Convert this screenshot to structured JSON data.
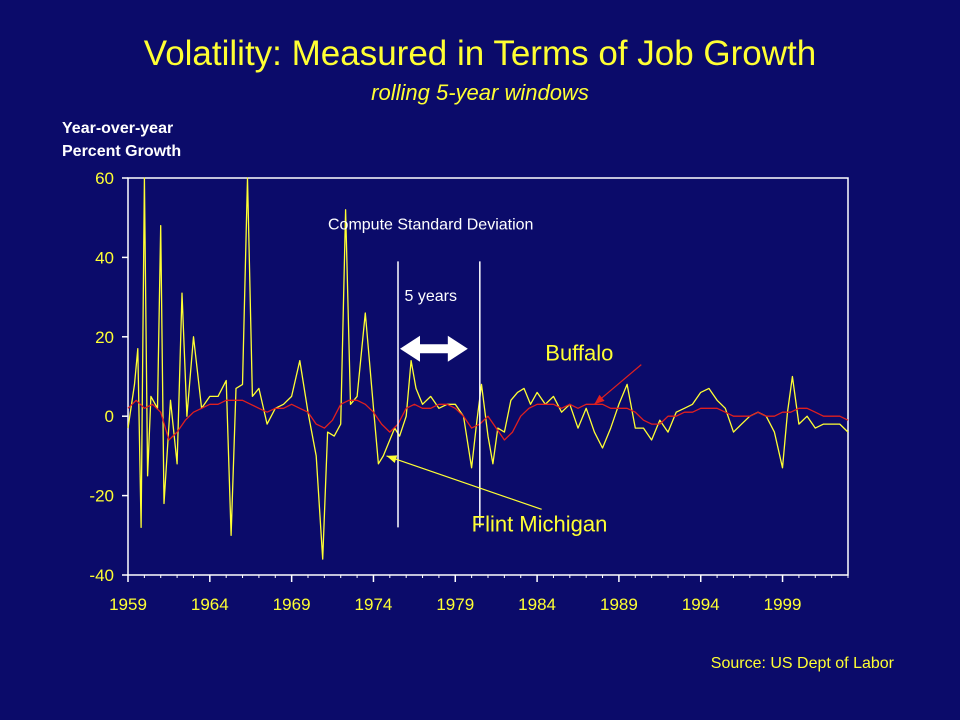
{
  "slide": {
    "title": "Volatility:  Measured in Terms of Job Growth",
    "subtitle": "rolling 5-year windows",
    "ylabel_line1": "Year-over-year",
    "ylabel_line2": "Percent Growth",
    "source": "Source:  US Dept of Labor"
  },
  "colors": {
    "background": "#0b0b6a",
    "flint_series": "#ffff33",
    "buffalo_series": "#e0201f",
    "axis": "#ffffff",
    "text_yellow": "#ffff33",
    "text_white": "#ffffff"
  },
  "chart_data": {
    "type": "line",
    "title": "Volatility:  Measured in Terms of Job Growth",
    "subtitle": "rolling 5-year windows",
    "ylabel": "Year-over-year Percent Growth",
    "xlabel": "",
    "xlim": [
      1959,
      2003
    ],
    "ylim": [
      -40,
      60
    ],
    "x_ticks": [
      "1959",
      "1964",
      "1969",
      "1974",
      "1979",
      "1984",
      "1989",
      "1994",
      "1999"
    ],
    "y_ticks": [
      "60",
      "40",
      "20",
      "0",
      "-20",
      "-40"
    ],
    "grid": false,
    "legend": "none (series labeled by annotations)",
    "series": [
      {
        "name": "Flint Michigan",
        "x": [
          1959.0,
          1959.4,
          1959.6,
          1959.8,
          1960.0,
          1960.2,
          1960.4,
          1960.8,
          1961.0,
          1961.2,
          1961.6,
          1962.0,
          1962.3,
          1962.6,
          1963.0,
          1963.5,
          1964.0,
          1964.5,
          1965.0,
          1965.3,
          1965.6,
          1966.0,
          1966.3,
          1966.6,
          1967.0,
          1967.5,
          1968.0,
          1968.5,
          1969.0,
          1969.5,
          1970.0,
          1970.5,
          1970.9,
          1971.2,
          1971.6,
          1972.0,
          1972.3,
          1972.6,
          1973.0,
          1973.5,
          1974.0,
          1974.3,
          1974.6,
          1975.0,
          1975.3,
          1975.6,
          1976.0,
          1976.3,
          1976.6,
          1977.0,
          1977.5,
          1978.0,
          1978.5,
          1979.0,
          1979.5,
          1980.0,
          1980.3,
          1980.6,
          1981.0,
          1981.3,
          1981.6,
          1982.0,
          1982.4,
          1982.8,
          1983.2,
          1983.6,
          1984.0,
          1984.5,
          1985.0,
          1985.5,
          1986.0,
          1986.5,
          1987.0,
          1987.5,
          1988.0,
          1988.5,
          1989.0,
          1989.5,
          1990.0,
          1990.5,
          1991.0,
          1991.5,
          1992.0,
          1992.5,
          1993.0,
          1993.5,
          1994.0,
          1994.5,
          1995.0,
          1995.5,
          1996.0,
          1996.5,
          1997.0,
          1997.5,
          1998.0,
          1998.5,
          1999.0,
          1999.3,
          1999.6,
          2000.0,
          2000.5,
          2001.0,
          2001.5,
          2002.0,
          2002.5,
          2003.0
        ],
        "y": [
          -3,
          8,
          17,
          -28,
          60,
          -15,
          5,
          2,
          48,
          -22,
          4,
          -12,
          31,
          0,
          20,
          2,
          5,
          5,
          9,
          -30,
          7,
          8,
          60,
          5,
          7,
          -2,
          2,
          3,
          5,
          14,
          1,
          -10,
          -36,
          -4,
          -5,
          -2,
          52,
          3,
          5,
          26,
          2,
          -12,
          -10,
          -6,
          -3,
          -5,
          0,
          14,
          7,
          3,
          5,
          2,
          3,
          3,
          0,
          -13,
          -2,
          8,
          -5,
          -12,
          -3,
          -4,
          4,
          6,
          7,
          3,
          6,
          3,
          5,
          1,
          3,
          -3,
          2,
          -4,
          -8,
          -3,
          3,
          8,
          -3,
          -3,
          -6,
          -1,
          -4,
          1,
          2,
          3,
          6,
          7,
          4,
          2,
          -4,
          -2,
          0,
          1,
          0,
          -4,
          -13,
          1,
          10,
          -2,
          0,
          -3,
          -2,
          -2,
          -2,
          -4
        ]
      },
      {
        "name": "Buffalo",
        "x": [
          1959.0,
          1959.5,
          1960.0,
          1960.5,
          1961.0,
          1961.5,
          1962.0,
          1962.5,
          1963.0,
          1963.5,
          1964.0,
          1964.5,
          1965.0,
          1965.5,
          1966.0,
          1966.5,
          1967.0,
          1967.5,
          1968.0,
          1968.5,
          1969.0,
          1969.5,
          1970.0,
          1970.5,
          1971.0,
          1971.5,
          1972.0,
          1972.5,
          1973.0,
          1973.5,
          1974.0,
          1974.5,
          1975.0,
          1975.5,
          1976.0,
          1976.5,
          1977.0,
          1977.5,
          1978.0,
          1978.5,
          1979.0,
          1979.5,
          1980.0,
          1980.5,
          1981.0,
          1981.5,
          1982.0,
          1982.5,
          1983.0,
          1983.5,
          1984.0,
          1984.5,
          1985.0,
          1985.5,
          1986.0,
          1986.5,
          1987.0,
          1987.5,
          1988.0,
          1988.5,
          1989.0,
          1989.5,
          1990.0,
          1990.5,
          1991.0,
          1991.5,
          1992.0,
          1992.5,
          1993.0,
          1993.5,
          1994.0,
          1994.5,
          1995.0,
          1995.5,
          1996.0,
          1996.5,
          1997.0,
          1997.5,
          1998.0,
          1998.5,
          1999.0,
          1999.5,
          2000.0,
          2000.5,
          2001.0,
          2001.5,
          2002.0,
          2002.5,
          2003.0
        ],
        "y": [
          2,
          4,
          2,
          3,
          1,
          -6,
          -4,
          -1,
          1,
          2,
          3,
          3,
          4,
          4,
          4,
          3,
          2,
          1,
          2,
          2,
          3,
          2,
          1,
          -2,
          -3,
          -1,
          3,
          4,
          4,
          3,
          1,
          -2,
          -4,
          -2,
          2,
          3,
          2,
          2,
          3,
          3,
          2,
          0,
          -3,
          -2,
          0,
          -3,
          -6,
          -4,
          0,
          2,
          3,
          3,
          3,
          2,
          3,
          2,
          3,
          3,
          3,
          2,
          2,
          2,
          1,
          -1,
          -2,
          -2,
          0,
          0,
          1,
          1,
          2,
          2,
          2,
          1,
          0,
          0,
          0,
          1,
          0,
          0,
          1,
          1,
          2,
          2,
          1,
          0,
          0,
          0,
          -1
        ]
      }
    ],
    "annotations": [
      {
        "text": "Compute Standard Deviation",
        "x": 1977.5,
        "y": 47
      },
      {
        "text": "5 years",
        "x": 1977.5,
        "y": 29
      },
      {
        "text": "Buffalo",
        "x": 1984.5,
        "y": 14,
        "pointer_to": {
          "x": 1987.5,
          "y": 3
        }
      },
      {
        "text": "Flint Michigan",
        "x": 1980.0,
        "y": -29,
        "pointer_to": {
          "x": 1974.8,
          "y": -10
        }
      }
    ],
    "window": {
      "start": 1975.5,
      "end": 1980.5,
      "label": "5 years"
    }
  }
}
